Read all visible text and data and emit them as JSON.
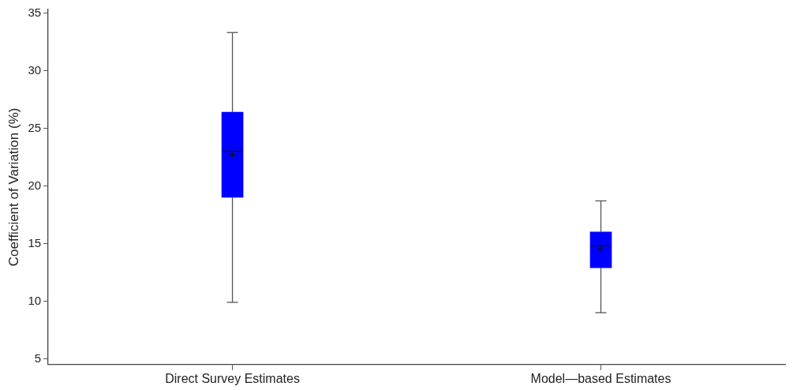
{
  "chart_data": {
    "type": "box",
    "ylabel": "Coefficient of Variation (%)",
    "categories": [
      "Direct Survey Estimates",
      "Model—based Estimates"
    ],
    "boxes": [
      {
        "low": 9.9,
        "q1": 19.0,
        "median": 23.0,
        "q3": 26.4,
        "high": 33.3,
        "mean": 22.7
      },
      {
        "low": 9.0,
        "q1": 12.9,
        "median": 14.8,
        "q3": 16.0,
        "high": 18.7,
        "mean": 14.5
      }
    ],
    "color": "#0000ff",
    "ylim": [
      4.5,
      35.3
    ],
    "yticks": [
      5,
      10,
      15,
      20,
      25,
      30,
      35
    ],
    "grid": false
  }
}
